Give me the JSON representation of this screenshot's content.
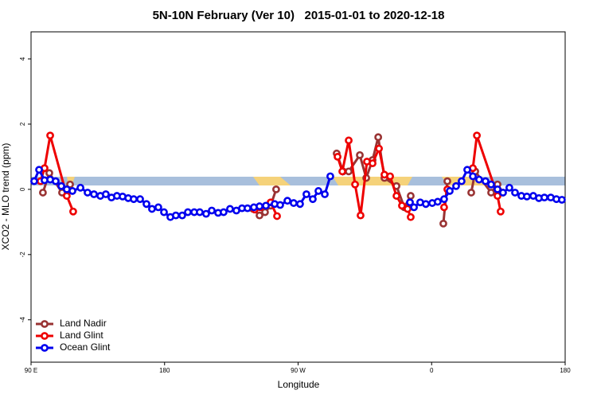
{
  "chart_data": {
    "type": "line",
    "title": "5N-10N February (Ver 10)   2015-01-01 to 2020-12-18",
    "x_label": "Longitude",
    "y_label": "XCO2 - MLO trend (ppm)",
    "xlim": [
      90,
      450
    ],
    "xticks": [
      {
        "value": 90,
        "label": "90 E"
      },
      {
        "value": 180,
        "label": "180"
      },
      {
        "value": 270,
        "label": "90 W"
      },
      {
        "value": 360,
        "label": "0"
      },
      {
        "value": 450,
        "label": "180"
      }
    ],
    "ylim": [
      -5.3,
      4.83
    ],
    "yticks": [
      -4,
      -2,
      0,
      2,
      4
    ],
    "legend": "bottom-left",
    "series": [
      {
        "name": "Land Nadir",
        "color": "#993333",
        "x": [
          98,
          102.3,
          110.9,
          116.3,
          null,
          239.7,
          244,
          247.7,
          251.5,
          255.2,
          null,
          296,
          300.3,
          304.1,
          311.6,
          315.9,
          320.2,
          324,
          328.2,
          336.3,
          341.6,
          345.9,
          null,
          367.9,
          370.6,
          null,
          386.7,
          389.4,
          400.1,
          404.4,
          408.1
        ],
        "values": [
          -0.1,
          0.5,
          -0.1,
          0.15,
          null,
          -0.6,
          -0.8,
          -0.7,
          -0.5,
          0.0,
          null,
          1.1,
          0.55,
          0.55,
          1.05,
          0.35,
          0.9,
          1.6,
          0.35,
          0.1,
          -0.55,
          -0.2,
          null,
          -1.05,
          0.25,
          null,
          -0.1,
          0.55,
          -0.1,
          0.15,
          -0.1
        ]
      },
      {
        "name": "Land Glint",
        "color": "#ee0000",
        "x": [
          96.4,
          99.1,
          102.9,
          114.1,
          118.4,
          null,
          240.8,
          244.5,
          251.5,
          255.8,
          null,
          296.6,
          299.8,
          304.1,
          308.4,
          312.1,
          316.4,
          320.2,
          324.5,
          328.2,
          332,
          336.3,
          340,
          343.8,
          345.9,
          null,
          368.4,
          370.6,
          null,
          387.8,
          390.5,
          404.4,
          406.5
        ],
        "values": [
          0.25,
          0.65,
          1.65,
          -0.2,
          -0.68,
          null,
          -0.62,
          -0.55,
          -0.4,
          -0.82,
          null,
          1.0,
          0.55,
          1.5,
          0.15,
          -0.8,
          0.85,
          0.8,
          1.25,
          0.45,
          0.4,
          -0.2,
          -0.5,
          -0.6,
          -0.85,
          null,
          -0.55,
          0.0,
          null,
          0.65,
          1.65,
          -0.2,
          -0.68
        ]
      },
      {
        "name": "Ocean Glint",
        "color": "#0000ee",
        "x": [
          92.1,
          95.4,
          99.1,
          102.9,
          106.6,
          110.4,
          114.1,
          117.9,
          123.3,
          128.1,
          132.4,
          136.7,
          140.4,
          144.2,
          147.9,
          151.7,
          155.5,
          159.2,
          163.5,
          167.8,
          171.5,
          175.8,
          179.6,
          183.9,
          187.6,
          191.9,
          195.7,
          200,
          203.7,
          208,
          211.8,
          216.1,
          219.8,
          224.1,
          228.4,
          232.2,
          235.9,
          240.2,
          244,
          248.3,
          254.2,
          257.9,
          262.8,
          267,
          271.3,
          275.6,
          279.9,
          283.7,
          288,
          291.7,
          null,
          345.4,
          348.1,
          352.3,
          356.1,
          360.4,
          364.1,
          368.4,
          372.2,
          376.5,
          380.2,
          384,
          387.8,
          392,
          396.3,
          400.1,
          404.4,
          408.1,
          412.4,
          416.2,
          420.5,
          424.2,
          428.5,
          432.3,
          436,
          440.3,
          444.1,
          447.8
        ],
        "values": [
          0.25,
          0.6,
          0.28,
          0.3,
          0.25,
          0.1,
          0.0,
          -0.05,
          0.05,
          -0.1,
          -0.15,
          -0.2,
          -0.15,
          -0.25,
          -0.2,
          -0.22,
          -0.27,
          -0.3,
          -0.3,
          -0.45,
          -0.6,
          -0.55,
          -0.7,
          -0.85,
          -0.8,
          -0.8,
          -0.7,
          -0.7,
          -0.7,
          -0.75,
          -0.65,
          -0.72,
          -0.7,
          -0.6,
          -0.65,
          -0.58,
          -0.58,
          -0.55,
          -0.52,
          -0.5,
          -0.45,
          -0.48,
          -0.35,
          -0.42,
          -0.45,
          -0.15,
          -0.3,
          -0.05,
          -0.15,
          0.4,
          null,
          -0.4,
          -0.55,
          -0.4,
          -0.45,
          -0.42,
          -0.38,
          -0.3,
          -0.05,
          0.1,
          0.25,
          0.6,
          0.4,
          0.3,
          0.25,
          0.15,
          0.0,
          -0.1,
          0.05,
          -0.1,
          -0.2,
          -0.22,
          -0.2,
          -0.27,
          -0.25,
          -0.25,
          -0.3,
          -0.32
        ]
      }
    ]
  }
}
